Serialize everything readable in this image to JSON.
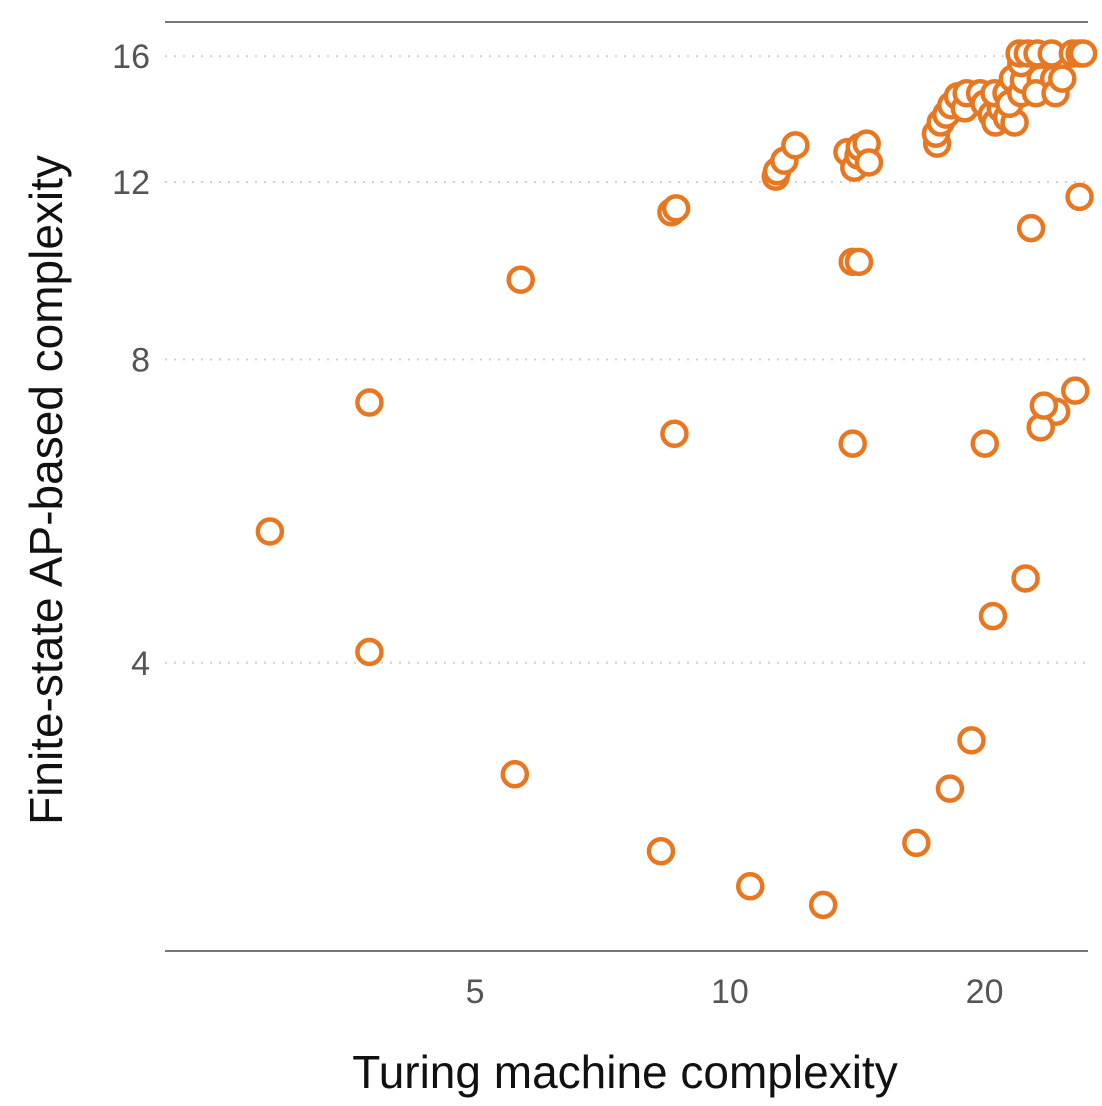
{
  "chart_data": {
    "type": "scatter",
    "title": "",
    "xlabel": "Turing machine complexity",
    "ylabel": "Finite-state AP-based complexity",
    "x_scale": "log",
    "y_scale": "log",
    "xlim": [
      2.15,
      26.5
    ],
    "ylim": [
      2.07,
      17.3
    ],
    "x_ticks": [
      5,
      10,
      20
    ],
    "x_tick_labels": [
      "5",
      "10",
      "20"
    ],
    "y_ticks": [
      4,
      8,
      12,
      16
    ],
    "y_tick_labels": [
      "4",
      "8",
      "12",
      "16"
    ],
    "grid": "horizontal-dotted",
    "marker": "open-circle",
    "color": "#E87722",
    "points": [
      [
        2.86,
        5.4
      ],
      [
        3.75,
        7.25
      ],
      [
        3.75,
        4.1
      ],
      [
        5.66,
        9.6
      ],
      [
        5.57,
        3.1
      ],
      [
        8.53,
        11.2
      ],
      [
        8.64,
        11.3
      ],
      [
        8.6,
        6.75
      ],
      [
        8.29,
        2.6
      ],
      [
        10.57,
        2.4
      ],
      [
        11.33,
        12.15
      ],
      [
        11.37,
        12.3
      ],
      [
        11.6,
        12.6
      ],
      [
        11.95,
        13.05
      ],
      [
        12.89,
        2.3
      ],
      [
        13.77,
        12.85
      ],
      [
        14.03,
        12.4
      ],
      [
        14.19,
        12.75
      ],
      [
        14.24,
        13.0
      ],
      [
        14.51,
        13.1
      ],
      [
        14.6,
        12.55
      ],
      [
        13.97,
        10.0
      ],
      [
        14.21,
        10.0
      ],
      [
        13.97,
        6.6
      ],
      [
        16.61,
        2.65
      ],
      [
        18.2,
        3.0
      ],
      [
        17.58,
        13.1
      ],
      [
        17.52,
        13.4
      ],
      [
        17.75,
        13.75
      ],
      [
        18.02,
        14.0
      ],
      [
        18.27,
        14.3
      ],
      [
        18.6,
        14.6
      ],
      [
        18.95,
        14.2
      ],
      [
        19.05,
        14.7
      ],
      [
        19.76,
        14.7
      ],
      [
        20.0,
        14.35
      ],
      [
        20.4,
        14.0
      ],
      [
        20.6,
        13.75
      ],
      [
        20.9,
        14.2
      ],
      [
        20.55,
        14.7
      ],
      [
        21.23,
        14.7
      ],
      [
        21.26,
        13.9
      ],
      [
        21.7,
        13.75
      ],
      [
        21.4,
        14.35
      ],
      [
        21.6,
        15.2
      ],
      [
        22.1,
        14.7
      ],
      [
        22.26,
        15.15
      ],
      [
        22.1,
        15.75
      ],
      [
        22.0,
        16.1
      ],
      [
        22.5,
        16.1
      ],
      [
        23.1,
        16.1
      ],
      [
        23.3,
        15.2
      ],
      [
        23.0,
        14.7
      ],
      [
        24.01,
        16.1
      ],
      [
        24.17,
        15.2
      ],
      [
        24.26,
        14.7
      ],
      [
        24.71,
        15.2
      ],
      [
        25.43,
        16.1
      ],
      [
        25.9,
        16.1
      ],
      [
        26.15,
        16.1
      ],
      [
        25.9,
        11.6
      ],
      [
        22.7,
        10.8
      ],
      [
        25.6,
        7.45
      ],
      [
        24.3,
        7.1
      ],
      [
        23.3,
        6.85
      ],
      [
        23.5,
        7.2
      ],
      [
        20.01,
        6.6
      ],
      [
        22.36,
        4.85
      ],
      [
        20.46,
        4.45
      ],
      [
        19.3,
        3.35
      ]
    ]
  }
}
